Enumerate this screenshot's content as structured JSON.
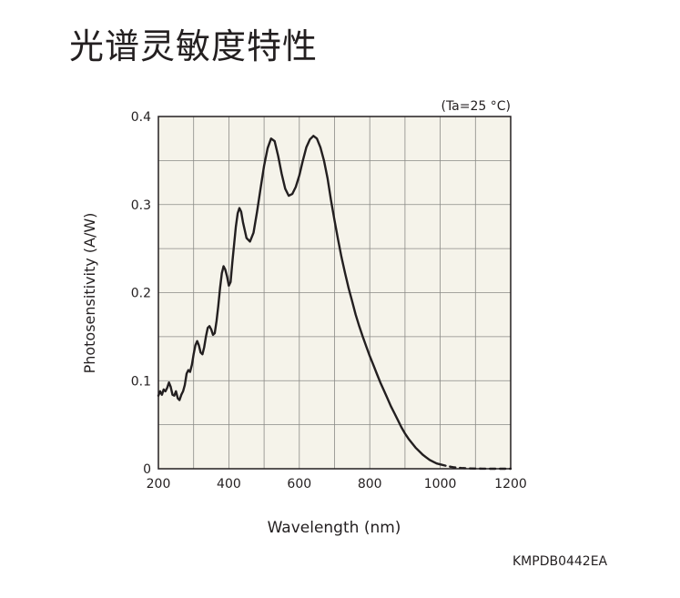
{
  "title": "光谱灵敏度特性",
  "figure_code": "KMPDB0442EA",
  "chart_data": {
    "type": "line",
    "title": "光谱灵敏度特性",
    "condition": "(Ta=25 °C)",
    "xlabel": "Wavelength (nm)",
    "ylabel": "Photosensitivity (A/W)",
    "xlim": [
      200,
      1200
    ],
    "ylim": [
      0,
      0.4
    ],
    "x_ticks": [
      200,
      400,
      600,
      800,
      1000,
      1200
    ],
    "x_tick_labels": [
      "200",
      "400",
      "600",
      "800",
      "1000",
      "1200"
    ],
    "y_ticks": [
      0,
      0.1,
      0.2,
      0.3,
      0.4
    ],
    "y_tick_labels": [
      "0",
      "0.1",
      "0.2",
      "0.3",
      "0.4"
    ],
    "grid": true,
    "plot_background": "#f5f3ea",
    "line_color": "#231f20",
    "series": [
      {
        "style": "solid",
        "x": [
          200,
          205,
          210,
          215,
          220,
          225,
          230,
          235,
          240,
          245,
          250,
          255,
          260,
          265,
          270,
          275,
          280,
          285,
          290,
          295,
          300,
          305,
          310,
          315,
          320,
          325,
          330,
          335,
          340,
          345,
          350,
          355,
          360,
          365,
          370,
          375,
          380,
          385,
          390,
          395,
          400,
          405,
          410,
          415,
          420,
          425,
          430,
          435,
          440,
          450,
          460,
          470,
          480,
          490,
          500,
          510,
          520,
          530,
          540,
          550,
          560,
          570,
          580,
          590,
          600,
          610,
          620,
          630,
          640,
          650,
          660,
          670,
          680,
          690,
          700,
          710,
          720,
          730,
          740,
          750,
          760,
          770,
          780,
          790,
          800,
          810,
          820,
          830,
          840,
          850,
          860,
          870,
          880,
          890,
          900,
          910,
          920,
          930,
          940,
          950,
          960,
          970,
          980,
          990,
          1000
        ],
        "y": [
          0.083,
          0.088,
          0.084,
          0.09,
          0.088,
          0.092,
          0.098,
          0.093,
          0.084,
          0.083,
          0.088,
          0.08,
          0.078,
          0.084,
          0.088,
          0.095,
          0.108,
          0.112,
          0.11,
          0.118,
          0.13,
          0.14,
          0.145,
          0.14,
          0.132,
          0.13,
          0.138,
          0.15,
          0.16,
          0.162,
          0.158,
          0.152,
          0.154,
          0.168,
          0.185,
          0.205,
          0.222,
          0.23,
          0.226,
          0.218,
          0.208,
          0.212,
          0.235,
          0.255,
          0.275,
          0.29,
          0.296,
          0.292,
          0.28,
          0.262,
          0.258,
          0.268,
          0.292,
          0.318,
          0.344,
          0.364,
          0.375,
          0.372,
          0.355,
          0.335,
          0.318,
          0.31,
          0.312,
          0.32,
          0.333,
          0.35,
          0.365,
          0.374,
          0.378,
          0.375,
          0.365,
          0.35,
          0.33,
          0.305,
          0.282,
          0.26,
          0.24,
          0.222,
          0.205,
          0.19,
          0.175,
          0.162,
          0.15,
          0.139,
          0.128,
          0.118,
          0.108,
          0.098,
          0.089,
          0.08,
          0.071,
          0.063,
          0.055,
          0.047,
          0.04,
          0.034,
          0.029,
          0.024,
          0.02,
          0.016,
          0.013,
          0.01,
          0.008,
          0.006,
          0.005
        ]
      },
      {
        "style": "dashed",
        "x": [
          1000,
          1020,
          1040,
          1060,
          1080,
          1100,
          1120,
          1140,
          1160,
          1180,
          1200
        ],
        "y": [
          0.005,
          0.003,
          0.0015,
          0.0008,
          0.0004,
          0.0002,
          0.0001,
          0.0,
          0.0,
          0.0,
          0.0
        ]
      }
    ]
  }
}
